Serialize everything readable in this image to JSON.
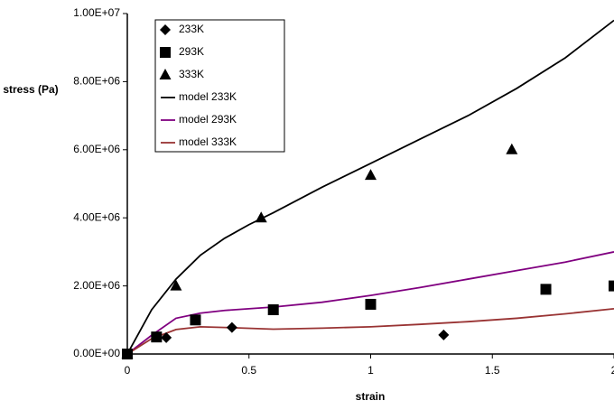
{
  "chart_data": {
    "type": "scatter",
    "x_label": "strain",
    "y_label": "stress (Pa)",
    "xlim": [
      0,
      2
    ],
    "ylim": [
      0,
      10000000
    ],
    "xticks": [
      0,
      0.5,
      1,
      1.5,
      2
    ],
    "yticks": [
      {
        "value": 0,
        "label": "0.00E+00"
      },
      {
        "value": 2000000,
        "label": "2.00E+06"
      },
      {
        "value": 4000000,
        "label": "4.00E+06"
      },
      {
        "value": 6000000,
        "label": "6.00E+06"
      },
      {
        "value": 8000000,
        "label": "8.00E+06"
      },
      {
        "value": 10000000,
        "label": "1.00E+07"
      }
    ],
    "grid": false,
    "legend": "upper left",
    "series": [
      {
        "name": "233K",
        "color": "#000000",
        "marker": "diamond",
        "x": [
          0,
          0.16,
          0.43,
          1.3
        ],
        "values": [
          0,
          480000,
          780000,
          560000
        ]
      },
      {
        "name": "293K",
        "color": "#000000",
        "marker": "square",
        "x": [
          0,
          0.12,
          0.28,
          0.6,
          1.0,
          1.72,
          2.0
        ],
        "values": [
          0,
          500000,
          1000000,
          1300000,
          1460000,
          1900000,
          2000000
        ]
      },
      {
        "name": "333K",
        "color": "#000000",
        "marker": "triangle",
        "x": [
          0,
          0.2,
          0.55,
          1.0,
          1.58
        ],
        "values": [
          0,
          2000000,
          4000000,
          5250000,
          6000000
        ]
      },
      {
        "name": "model 233K",
        "color": "#000000",
        "marker": "line",
        "x": [
          0,
          0.1,
          0.2,
          0.3,
          0.4,
          0.5,
          0.6,
          0.8,
          1.0,
          1.2,
          1.4,
          1.6,
          1.8,
          2.0
        ],
        "values": [
          0,
          1300000,
          2200000,
          2900000,
          3400000,
          3800000,
          4150000,
          4900000,
          5600000,
          6300000,
          7000000,
          7800000,
          8700000,
          9800000
        ]
      },
      {
        "name": "model 293K",
        "color": "#800080",
        "marker": "line",
        "x": [
          0,
          0.1,
          0.2,
          0.3,
          0.4,
          0.6,
          0.8,
          1.0,
          1.2,
          1.4,
          1.6,
          1.8,
          2.0
        ],
        "values": [
          0,
          550000,
          1050000,
          1200000,
          1280000,
          1380000,
          1520000,
          1720000,
          1950000,
          2200000,
          2450000,
          2700000,
          3000000
        ]
      },
      {
        "name": "model 333K",
        "color": "#993333",
        "marker": "line",
        "x": [
          0,
          0.1,
          0.2,
          0.3,
          0.4,
          0.6,
          0.8,
          1.0,
          1.2,
          1.4,
          1.6,
          1.8,
          2.0
        ],
        "values": [
          0,
          450000,
          720000,
          800000,
          780000,
          730000,
          760000,
          800000,
          870000,
          950000,
          1050000,
          1180000,
          1330000
        ]
      }
    ]
  }
}
